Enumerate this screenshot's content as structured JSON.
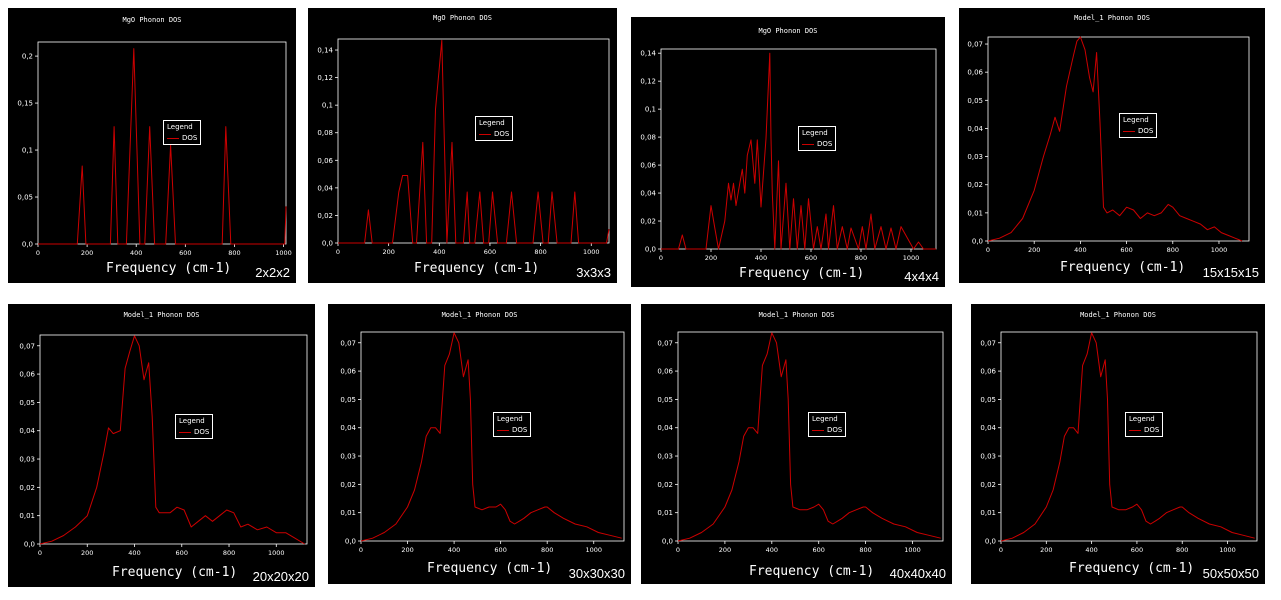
{
  "colors": {
    "background": "#000000",
    "axis": "#ffffff",
    "series": "#cc0000"
  },
  "chart_data": [
    {
      "type": "line",
      "title": "MgO Phonon DOS",
      "xlabel": "Frequency (cm-1)",
      "ylabel": "",
      "grid_label": "2x2x2",
      "legend": {
        "title": "Legend",
        "entries": [
          "DOS"
        ],
        "placement": "center"
      },
      "xlim": [
        0,
        1010
      ],
      "ylim": [
        0,
        0.215
      ],
      "xticks": [
        0,
        200,
        400,
        600,
        800,
        1000
      ],
      "yticks": [
        0,
        0.05,
        0.1,
        0.15,
        0.2
      ],
      "yticklabels": [
        "0,0",
        "0,05",
        "0,1",
        "0,15",
        "0,2"
      ],
      "grid": false,
      "series": [
        {
          "name": "DOS",
          "x": [
            0,
            160,
            180,
            195,
            295,
            310,
            325,
            360,
            390,
            415,
            435,
            455,
            475,
            520,
            540,
            560,
            750,
            765,
            785,
            1005,
            1010
          ],
          "y": [
            0,
            0,
            0.083,
            0,
            0,
            0.125,
            0,
            0,
            0.208,
            0,
            0,
            0.125,
            0,
            0,
            0.105,
            0,
            0,
            0.125,
            0,
            0,
            0.04
          ]
        }
      ]
    },
    {
      "type": "line",
      "title": "MgO Phonon DOS",
      "xlabel": "Frequency (cm-1)",
      "ylabel": "",
      "grid_label": "3x3x3",
      "legend": {
        "title": "Legend",
        "entries": [
          "DOS"
        ],
        "placement": "center"
      },
      "xlim": [
        0,
        1070
      ],
      "ylim": [
        0,
        0.148
      ],
      "xticks": [
        0,
        200,
        400,
        600,
        800,
        1000
      ],
      "yticks": [
        0,
        0.02,
        0.04,
        0.06,
        0.08,
        0.1,
        0.12,
        0.14
      ],
      "yticklabels": [
        "0,0",
        "0,02",
        "0,04",
        "0,06",
        "0,08",
        "0,1",
        "0,12",
        "0,14"
      ],
      "grid": false,
      "series": [
        {
          "name": "DOS",
          "x": [
            0,
            105,
            120,
            135,
            215,
            240,
            255,
            275,
            295,
            310,
            335,
            350,
            370,
            385,
            410,
            430,
            450,
            465,
            495,
            510,
            520,
            540,
            560,
            575,
            595,
            610,
            630,
            665,
            685,
            705,
            770,
            790,
            810,
            830,
            845,
            865,
            920,
            935,
            950,
            1060,
            1070
          ],
          "y": [
            0,
            0,
            0.024,
            0,
            0,
            0.037,
            0.049,
            0.049,
            0,
            0,
            0.073,
            0,
            0,
            0.097,
            0.147,
            0,
            0.073,
            0,
            0,
            0.037,
            0,
            0,
            0.037,
            0,
            0,
            0.037,
            0,
            0,
            0.037,
            0,
            0,
            0.037,
            0,
            0,
            0.037,
            0,
            0,
            0.037,
            0,
            0,
            0.01
          ]
        }
      ]
    },
    {
      "type": "line",
      "title": "MgO Phonon DOS",
      "xlabel": "Frequency (cm-1)",
      "ylabel": "",
      "grid_label": "4x4x4",
      "legend": {
        "title": "Legend",
        "entries": [
          "DOS"
        ],
        "placement": "center"
      },
      "xlim": [
        0,
        1100
      ],
      "ylim": [
        0,
        0.143
      ],
      "xticks": [
        0,
        200,
        400,
        600,
        800,
        1000
      ],
      "yticks": [
        0,
        0.02,
        0.04,
        0.06,
        0.08,
        0.1,
        0.12,
        0.14
      ],
      "yticklabels": [
        "0,0",
        "0,02",
        "0,04",
        "0,06",
        "0,08",
        "0,1",
        "0,12",
        "0,14"
      ],
      "grid": false,
      "series": [
        {
          "name": "DOS",
          "x": [
            0,
            70,
            85,
            100,
            180,
            200,
            215,
            230,
            255,
            270,
            280,
            290,
            300,
            315,
            325,
            335,
            345,
            360,
            375,
            385,
            400,
            420,
            435,
            440,
            445,
            455,
            470,
            480,
            500,
            515,
            530,
            545,
            560,
            575,
            590,
            610,
            625,
            640,
            660,
            670,
            690,
            705,
            725,
            745,
            760,
            790,
            805,
            820,
            840,
            855,
            880,
            900,
            920,
            940,
            960,
            1010,
            1030,
            1050,
            1100
          ],
          "y": [
            0,
            0,
            0.01,
            0,
            0,
            0.031,
            0.015,
            0,
            0.02,
            0.047,
            0.035,
            0.047,
            0.031,
            0.047,
            0.057,
            0.04,
            0.067,
            0.078,
            0.047,
            0.078,
            0.03,
            0.079,
            0.14,
            0.079,
            0.04,
            0,
            0.063,
            0,
            0.047,
            0,
            0.036,
            0,
            0.031,
            0,
            0.036,
            0,
            0.016,
            0,
            0.025,
            0,
            0.031,
            0,
            0.016,
            0,
            0.015,
            0,
            0.016,
            0,
            0.025,
            0,
            0.016,
            0,
            0.015,
            0,
            0.016,
            0,
            0.005,
            0,
            0
          ]
        }
      ]
    },
    {
      "type": "line",
      "title": "Model_1 Phonon DOS",
      "xlabel": "Frequency (cm-1)",
      "ylabel": "",
      "grid_label": "15x15x15",
      "legend": {
        "title": "Legend",
        "entries": [
          "DOS"
        ],
        "placement": "center"
      },
      "xlim": [
        0,
        1130
      ],
      "ylim": [
        0,
        0.0725
      ],
      "xticks": [
        0,
        200,
        400,
        600,
        800,
        1000
      ],
      "yticks": [
        0,
        0.01,
        0.02,
        0.03,
        0.04,
        0.05,
        0.06,
        0.07
      ],
      "yticklabels": [
        "0,0",
        "0,01",
        "0,02",
        "0,03",
        "0,04",
        "0,05",
        "0,06",
        "0,07"
      ],
      "grid": false,
      "series": [
        {
          "name": "DOS",
          "x": [
            0,
            50,
            100,
            150,
            200,
            240,
            270,
            290,
            310,
            340,
            370,
            385,
            400,
            420,
            440,
            455,
            470,
            485,
            500,
            515,
            540,
            570,
            600,
            630,
            660,
            690,
            720,
            750,
            780,
            800,
            830,
            860,
            890,
            920,
            950,
            980,
            1010,
            1040,
            1070,
            1100
          ],
          "y": [
            0,
            0.001,
            0.003,
            0.008,
            0.018,
            0.03,
            0.038,
            0.044,
            0.039,
            0.055,
            0.066,
            0.071,
            0.0725,
            0.068,
            0.058,
            0.053,
            0.067,
            0.042,
            0.012,
            0.01,
            0.011,
            0.009,
            0.012,
            0.011,
            0.008,
            0.01,
            0.009,
            0.01,
            0.013,
            0.012,
            0.009,
            0.008,
            0.007,
            0.006,
            0.004,
            0.005,
            0.003,
            0.002,
            0.001,
            0
          ]
        }
      ]
    },
    {
      "type": "line",
      "title": "Model_1 Phonon DOS",
      "xlabel": "Frequency (cm-1)",
      "ylabel": "",
      "grid_label": "20x20x20",
      "legend": {
        "title": "Legend",
        "entries": [
          "DOS"
        ],
        "placement": "center"
      },
      "xlim": [
        0,
        1130
      ],
      "ylim": [
        0,
        0.0738
      ],
      "xticks": [
        0,
        200,
        400,
        600,
        800,
        1000
      ],
      "yticks": [
        0,
        0.01,
        0.02,
        0.03,
        0.04,
        0.05,
        0.06,
        0.07
      ],
      "yticklabels": [
        "0,0",
        "0,01",
        "0,02",
        "0,03",
        "0,04",
        "0,05",
        "0,06",
        "0,07"
      ],
      "grid": false,
      "series": [
        {
          "name": "DOS",
          "x": [
            0,
            50,
            100,
            150,
            200,
            240,
            270,
            290,
            310,
            340,
            360,
            380,
            400,
            420,
            440,
            460,
            475,
            490,
            505,
            520,
            550,
            580,
            610,
            640,
            670,
            700,
            730,
            760,
            790,
            820,
            850,
            880,
            920,
            960,
            1000,
            1040,
            1080,
            1120
          ],
          "y": [
            0,
            0.001,
            0.003,
            0.006,
            0.01,
            0.02,
            0.032,
            0.041,
            0.039,
            0.04,
            0.062,
            0.068,
            0.0735,
            0.07,
            0.058,
            0.064,
            0.045,
            0.013,
            0.011,
            0.011,
            0.011,
            0.013,
            0.012,
            0.006,
            0.008,
            0.01,
            0.008,
            0.01,
            0.012,
            0.011,
            0.006,
            0.007,
            0.005,
            0.006,
            0.004,
            0.004,
            0.002,
            0
          ]
        }
      ]
    },
    {
      "type": "line",
      "title": "Model_1 Phonon DOS",
      "xlabel": "Frequency (cm-1)",
      "ylabel": "",
      "grid_label": "30x30x30",
      "legend": {
        "title": "Legend",
        "entries": [
          "DOS"
        ],
        "placement": "center"
      },
      "xlim": [
        0,
        1130
      ],
      "ylim": [
        0,
        0.0738
      ],
      "xticks": [
        0,
        200,
        400,
        600,
        800,
        1000
      ],
      "yticks": [
        0,
        0.01,
        0.02,
        0.03,
        0.04,
        0.05,
        0.06,
        0.07
      ],
      "yticklabels": [
        "0,0",
        "0,01",
        "0,02",
        "0,03",
        "0,04",
        "0,05",
        "0,06",
        "0,07"
      ],
      "grid": false,
      "series": [
        {
          "name": "DOS",
          "x": [
            0,
            50,
            100,
            150,
            200,
            230,
            260,
            280,
            300,
            320,
            340,
            360,
            380,
            400,
            420,
            440,
            460,
            470,
            480,
            490,
            520,
            550,
            580,
            600,
            620,
            640,
            660,
            680,
            700,
            730,
            760,
            790,
            800,
            830,
            870,
            920,
            970,
            1020,
            1070,
            1120
          ],
          "y": [
            0,
            0.001,
            0.003,
            0.006,
            0.012,
            0.018,
            0.028,
            0.037,
            0.04,
            0.04,
            0.038,
            0.062,
            0.066,
            0.0735,
            0.07,
            0.058,
            0.064,
            0.05,
            0.02,
            0.012,
            0.011,
            0.012,
            0.012,
            0.013,
            0.011,
            0.007,
            0.006,
            0.007,
            0.008,
            0.01,
            0.011,
            0.012,
            0.012,
            0.01,
            0.008,
            0.006,
            0.005,
            0.003,
            0.002,
            0.001
          ]
        }
      ]
    },
    {
      "type": "line",
      "title": "Model_1 Phonon DOS",
      "xlabel": "Frequency (cm-1)",
      "ylabel": "",
      "grid_label": "40x40x40",
      "legend": {
        "title": "Legend",
        "entries": [
          "DOS"
        ],
        "placement": "center"
      },
      "xlim": [
        0,
        1130
      ],
      "ylim": [
        0,
        0.0738
      ],
      "xticks": [
        0,
        200,
        400,
        600,
        800,
        1000
      ],
      "yticks": [
        0,
        0.01,
        0.02,
        0.03,
        0.04,
        0.05,
        0.06,
        0.07
      ],
      "yticklabels": [
        "0,0",
        "0,01",
        "0,02",
        "0,03",
        "0,04",
        "0,05",
        "0,06",
        "0,07"
      ],
      "grid": false,
      "series": [
        {
          "name": "DOS",
          "x": [
            0,
            50,
            100,
            150,
            200,
            230,
            260,
            280,
            300,
            320,
            340,
            360,
            380,
            400,
            420,
            440,
            460,
            470,
            480,
            490,
            520,
            550,
            580,
            600,
            620,
            640,
            660,
            680,
            700,
            730,
            760,
            790,
            800,
            830,
            870,
            920,
            970,
            1020,
            1070,
            1120
          ],
          "y": [
            0,
            0.001,
            0.003,
            0.006,
            0.012,
            0.018,
            0.028,
            0.037,
            0.04,
            0.04,
            0.038,
            0.062,
            0.066,
            0.0735,
            0.07,
            0.058,
            0.064,
            0.05,
            0.02,
            0.012,
            0.011,
            0.011,
            0.012,
            0.013,
            0.011,
            0.007,
            0.006,
            0.007,
            0.008,
            0.01,
            0.011,
            0.012,
            0.012,
            0.01,
            0.008,
            0.006,
            0.005,
            0.003,
            0.002,
            0.001
          ]
        }
      ]
    },
    {
      "type": "line",
      "title": "Model_1 Phonon DOS",
      "xlabel": "Frequency (cm-1)",
      "ylabel": "",
      "grid_label": "50x50x50",
      "legend": {
        "title": "Legend",
        "entries": [
          "DOS"
        ],
        "placement": "center"
      },
      "xlim": [
        0,
        1130
      ],
      "ylim": [
        0,
        0.0738
      ],
      "xticks": [
        0,
        200,
        400,
        600,
        800,
        1000
      ],
      "yticks": [
        0,
        0.01,
        0.02,
        0.03,
        0.04,
        0.05,
        0.06,
        0.07
      ],
      "yticklabels": [
        "0,0",
        "0,01",
        "0,02",
        "0,03",
        "0,04",
        "0,05",
        "0,06",
        "0,07"
      ],
      "grid": false,
      "series": [
        {
          "name": "DOS",
          "x": [
            0,
            50,
            100,
            150,
            200,
            230,
            260,
            280,
            300,
            320,
            340,
            360,
            380,
            400,
            420,
            440,
            460,
            470,
            480,
            490,
            520,
            550,
            580,
            600,
            620,
            640,
            660,
            680,
            700,
            730,
            760,
            790,
            800,
            830,
            870,
            920,
            970,
            1020,
            1070,
            1120
          ],
          "y": [
            0,
            0.001,
            0.003,
            0.006,
            0.012,
            0.018,
            0.028,
            0.037,
            0.04,
            0.04,
            0.038,
            0.062,
            0.066,
            0.0735,
            0.07,
            0.058,
            0.064,
            0.05,
            0.02,
            0.012,
            0.011,
            0.011,
            0.012,
            0.013,
            0.011,
            0.007,
            0.006,
            0.007,
            0.008,
            0.01,
            0.011,
            0.012,
            0.012,
            0.01,
            0.008,
            0.006,
            0.005,
            0.003,
            0.002,
            0.001
          ]
        }
      ]
    }
  ]
}
